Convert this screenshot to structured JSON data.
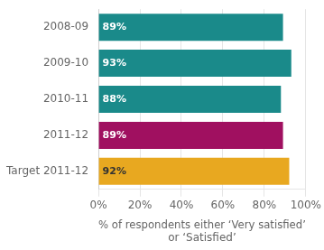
{
  "chart_data": {
    "type": "bar",
    "orientation": "horizontal",
    "categories": [
      "2008-09",
      "2009-10",
      "2010-11",
      "2011-12",
      "Target 2011-12"
    ],
    "values": [
      89,
      93,
      88,
      89,
      92
    ],
    "value_labels": [
      "89%",
      "93%",
      "88%",
      "89%",
      "92%"
    ],
    "colors": [
      "#1a8a8a",
      "#1a8a8a",
      "#1a8a8a",
      "#a01060",
      "#e8a820"
    ],
    "xlabel": "% of respondents either ‘Very satisfied’\nor ‘Satisfied’",
    "xlim": [
      0,
      100
    ],
    "xticks": [
      {
        "value": 0,
        "label": "0%"
      },
      {
        "value": 20,
        "label": "20%"
      },
      {
        "value": 40,
        "label": "40%"
      },
      {
        "value": 60,
        "label": "60%"
      },
      {
        "value": 80,
        "label": "80%"
      },
      {
        "value": 100,
        "label": "100%"
      }
    ],
    "data_labels": true,
    "grid": true
  }
}
